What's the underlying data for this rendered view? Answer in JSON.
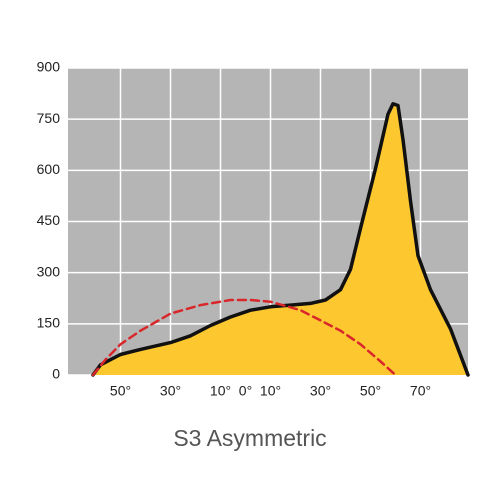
{
  "chart_data": {
    "type": "area",
    "title": "S3 Asymmetric",
    "xlim": [
      -71,
      89
    ],
    "ylim": [
      0,
      900
    ],
    "yticks": [
      0,
      150,
      300,
      450,
      600,
      750,
      900
    ],
    "xticks": [
      {
        "value": -50,
        "label": "50°"
      },
      {
        "value": -30,
        "label": "30°"
      },
      {
        "value": -10,
        "label": "10°"
      },
      {
        "value": 0,
        "label": "0°"
      },
      {
        "value": 10,
        "label": "10°"
      },
      {
        "value": 30,
        "label": "30°"
      },
      {
        "value": 50,
        "label": "50°"
      },
      {
        "value": 70,
        "label": "70°"
      }
    ],
    "xgrid": [
      -50,
      -30,
      -10,
      10,
      30,
      50,
      70
    ],
    "grid": true,
    "background": "#b5b5b5",
    "series": [
      {
        "color": "#111111",
        "fill": "#fdc82f",
        "dashed": false,
        "x": [
          -61,
          -58,
          -50,
          -42,
          -30,
          -22,
          -14,
          -6,
          2,
          10,
          18,
          26,
          32,
          38,
          42,
          46,
          52,
          57,
          59,
          61,
          63,
          66,
          69,
          74,
          82,
          89
        ],
        "values": [
          0,
          30,
          60,
          75,
          95,
          115,
          145,
          170,
          190,
          200,
          205,
          210,
          220,
          250,
          310,
          430,
          605,
          765,
          795,
          790,
          690,
          510,
          350,
          250,
          135,
          0
        ]
      },
      {
        "color": "#d9262b",
        "fill": null,
        "dashed": true,
        "x": [
          -61,
          -56,
          -50,
          -42,
          -30,
          -18,
          -6,
          2,
          10,
          22,
          30,
          38,
          46,
          54,
          60
        ],
        "values": [
          0,
          45,
          90,
          130,
          180,
          205,
          220,
          220,
          215,
          190,
          160,
          130,
          90,
          40,
          0
        ]
      }
    ]
  }
}
